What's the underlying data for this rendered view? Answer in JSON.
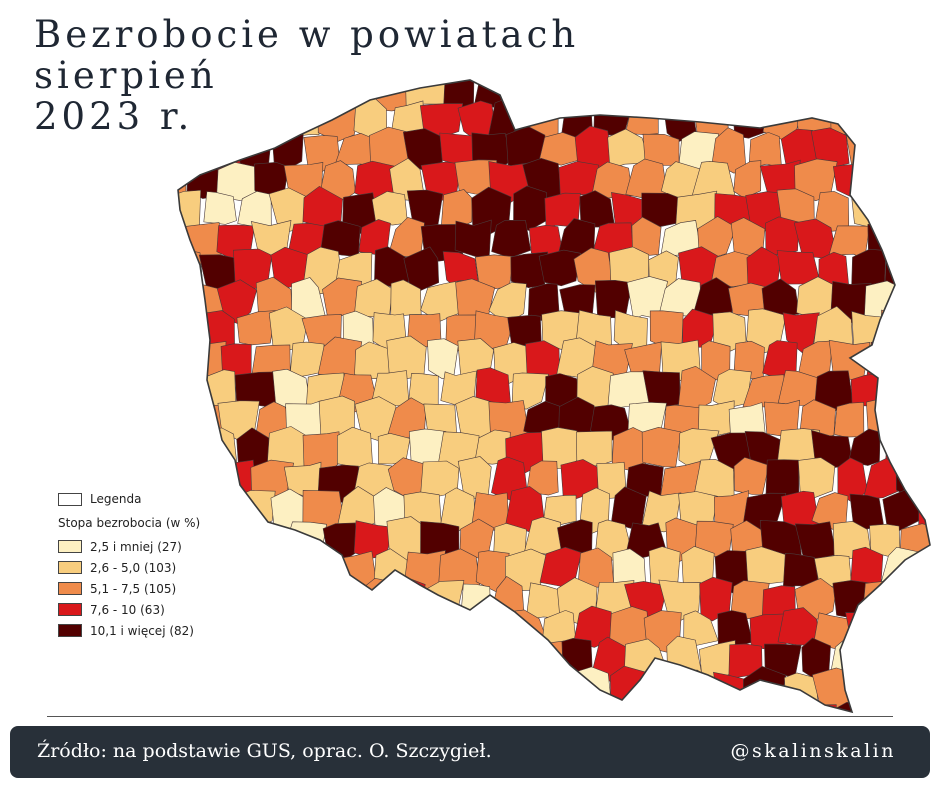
{
  "title": {
    "line1": "Bezrobocie w powiatach",
    "line2": "sierpień",
    "line3": "2023 r."
  },
  "legend": {
    "header": "Legenda",
    "subtitle": "Stopa bezrobocia (w %)",
    "classes": [
      {
        "label": "2,5 i mniej (27)",
        "color": "#fdf0c2"
      },
      {
        "label": "2,6 - 5,0 (103)",
        "color": "#f8cd7e"
      },
      {
        "label": "5,1 - 7,5 (105)",
        "color": "#ef8b4b"
      },
      {
        "label": "7,6 - 10 (63)",
        "color": "#d9181b"
      },
      {
        "label": "10,1 i więcej (82)",
        "color": "#520000"
      }
    ]
  },
  "footer": {
    "source": "Źródło: na podstawie GUS, oprac. O. Szczygieł.",
    "handle": "@skalinskalin"
  },
  "colors": {
    "footer_bg": "#283039",
    "border": "#3a3a3a",
    "title": "#1f2733"
  }
}
